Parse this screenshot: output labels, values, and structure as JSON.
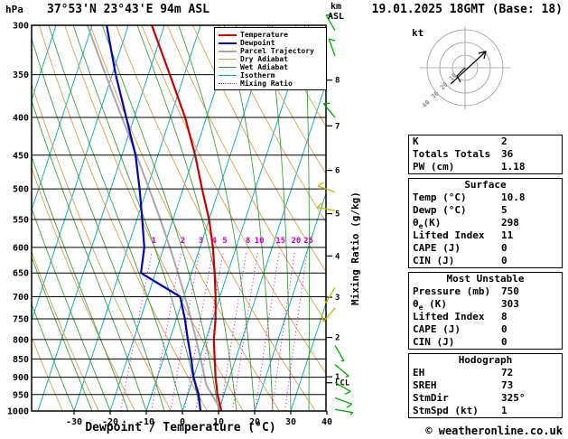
{
  "header": {
    "pressure_unit": "hPa",
    "station": "37°53'N 23°43'E 94m ASL",
    "altitude_unit_line1": "km",
    "altitude_unit_line2": "ASL",
    "datetime": "19.01.2025 18GMT (Base: 18)"
  },
  "axes": {
    "pressure_ticks": [
      300,
      350,
      400,
      450,
      500,
      550,
      600,
      650,
      700,
      750,
      800,
      850,
      900,
      950,
      1000
    ],
    "temp_ticks": [
      -30,
      -20,
      -10,
      0,
      10,
      20,
      30,
      40
    ],
    "x_label": "Dewpoint / Temperature (°C)",
    "km_ticks": [
      1,
      2,
      3,
      4,
      5,
      6,
      7,
      8
    ],
    "lcl_label": "LCL",
    "mixing_axis_label": "Mixing Ratio (g/kg)"
  },
  "legend": {
    "items": [
      {
        "label": "Temperature",
        "color": "#cc0000",
        "width": 2,
        "dash": false
      },
      {
        "label": "Dewpoint",
        "color": "#0000bb",
        "width": 2,
        "dash": false
      },
      {
        "label": "Parcel Trajectory",
        "color": "#a8a8a8",
        "width": 2,
        "dash": false
      },
      {
        "label": "Dry Adiabat",
        "color": "#d8a050",
        "width": 1,
        "dash": false
      },
      {
        "label": "Wet Adiabat",
        "color": "#3ca03c",
        "width": 1,
        "dash": false
      },
      {
        "label": "Isotherm",
        "color": "#00aaaa",
        "width": 1,
        "dash": false
      },
      {
        "label": "Mixing Ratio",
        "color": "#cc00cc",
        "width": 1,
        "dash": true
      }
    ]
  },
  "chart_data": {
    "type": "line",
    "title": "Skew-T log-P sounding, 37°53'N 23°43'E 94m ASL, 19.01.2025 18GMT",
    "x_axis": "Dewpoint / Temperature (°C)",
    "y_axis": "Pressure (hPa), log scale inverted",
    "skew_note": "isotherms skewed toward upper right",
    "xlim": [
      -40,
      40
    ],
    "ylim": [
      1000,
      300
    ],
    "pressure_hPa": [
      1000,
      950,
      900,
      850,
      800,
      750,
      700,
      650,
      600,
      550,
      500,
      450,
      400,
      350,
      300
    ],
    "series": [
      {
        "name": "Temperature",
        "color": "#cc0000",
        "values_c": [
          10.8,
          8.2,
          6.1,
          4.2,
          2.2,
          0.8,
          -1.2,
          -3.6,
          -6.4,
          -10.0,
          -14.7,
          -19.7,
          -25.9,
          -34.0,
          -43.5
        ]
      },
      {
        "name": "Dewpoint",
        "color": "#0000bb",
        "values_c": [
          5,
          3,
          0,
          -2.3,
          -5,
          -7.7,
          -11,
          -24,
          -25.4,
          -28.5,
          -32,
          -36.2,
          -42.2,
          -49,
          -56
        ]
      }
    ],
    "parcel": {
      "surface_temp_c": 10.8,
      "surface_dewp_c": 5
    },
    "mixing_ratio_lines_gkg": [
      1,
      2,
      3,
      4,
      5,
      8,
      10,
      15,
      20,
      25
    ],
    "isotherm_step_c": 10,
    "wind_barbs": [
      {
        "p": 305,
        "dir": 330,
        "spd": 10,
        "color": "#00aa00"
      },
      {
        "p": 330,
        "dir": 340,
        "spd": 10,
        "color": "#00aa00"
      },
      {
        "p": 400,
        "dir": 320,
        "spd": 10,
        "color": "#00aa00"
      },
      {
        "p": 505,
        "dir": 290,
        "spd": 10,
        "color": "#bcbc00"
      },
      {
        "p": 535,
        "dir": 280,
        "spd": 10,
        "color": "#bcbc00"
      },
      {
        "p": 680,
        "dir": 210,
        "spd": 5,
        "color": "#bcbc00"
      },
      {
        "p": 725,
        "dir": 220,
        "spd": 10,
        "color": "#bcbc00"
      },
      {
        "p": 815,
        "dir": 150,
        "spd": 5,
        "color": "#00aa00"
      },
      {
        "p": 865,
        "dir": 130,
        "spd": 5,
        "color": "#00aa00"
      },
      {
        "p": 915,
        "dir": 120,
        "spd": 10,
        "color": "#00aa00"
      },
      {
        "p": 960,
        "dir": 110,
        "spd": 10,
        "color": "#00aa00"
      },
      {
        "p": 995,
        "dir": 100,
        "spd": 5,
        "color": "#00aa00"
      }
    ]
  },
  "hodograph": {
    "unit_label": "kt",
    "ring_spacing_kt": 10,
    "ring_labels": [
      "10",
      "20",
      "30",
      "40"
    ],
    "storm_dir_deg": 325,
    "storm_spd_kt": 1
  },
  "panels": [
    {
      "header": "",
      "rows": [
        {
          "label": "K",
          "value": "2"
        },
        {
          "label": "Totals Totals",
          "value": "36"
        },
        {
          "label": "PW (cm)",
          "value": "1.18"
        }
      ]
    },
    {
      "header": "Surface",
      "rows": [
        {
          "label": "Temp (°C)",
          "value": "10.8"
        },
        {
          "label": "Dewp (°C)",
          "value": "5"
        },
        {
          "label": "θe(K)",
          "value": "298"
        },
        {
          "label": "Lifted Index",
          "value": "11"
        },
        {
          "label": "CAPE (J)",
          "value": "0"
        },
        {
          "label": "CIN (J)",
          "value": "0"
        }
      ]
    },
    {
      "header": "Most Unstable",
      "rows": [
        {
          "label": "Pressure (mb)",
          "value": "750"
        },
        {
          "label": "θe (K)",
          "value": "303"
        },
        {
          "label": "Lifted Index",
          "value": "8"
        },
        {
          "label": "CAPE (J)",
          "value": "0"
        },
        {
          "label": "CIN (J)",
          "value": "0"
        }
      ]
    },
    {
      "header": "Hodograph",
      "rows": [
        {
          "label": "EH",
          "value": "72"
        },
        {
          "label": "SREH",
          "value": "73"
        },
        {
          "label": "StmDir",
          "value": "325°"
        },
        {
          "label": "StmSpd (kt)",
          "value": "1"
        }
      ]
    }
  ],
  "footer": {
    "copyright": "© weatheronline.co.uk"
  }
}
